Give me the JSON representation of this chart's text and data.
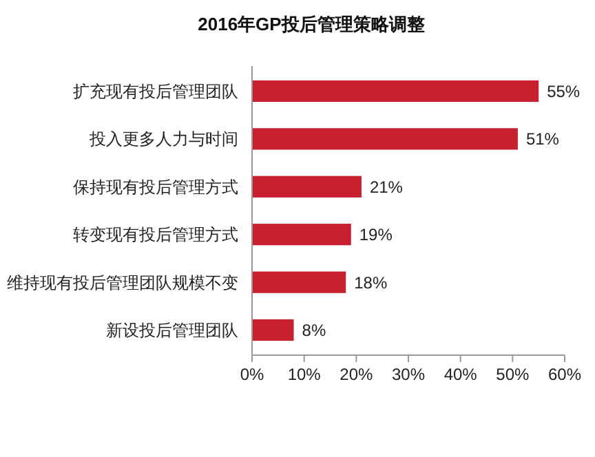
{
  "chart_data": {
    "type": "bar",
    "orientation": "horizontal",
    "title": "2016年GP投后管理策略调整",
    "categories": [
      "扩充现有投后管理团队",
      "投入更多人力与时间",
      "保持现有投后管理方式",
      "转变现有投后管理方式",
      "维持现有投后管理团队规模不变",
      "新设投后管理团队"
    ],
    "values": [
      55,
      51,
      21,
      19,
      18,
      8
    ],
    "value_labels": [
      "55%",
      "51%",
      "21%",
      "19%",
      "18%",
      "8%"
    ],
    "color": "#c8202f",
    "xlim": [
      0,
      60
    ],
    "xticks": [
      {
        "value": 0,
        "label": "0%"
      },
      {
        "value": 10,
        "label": "10%"
      },
      {
        "value": 20,
        "label": "20%"
      },
      {
        "value": 30,
        "label": "30%"
      },
      {
        "value": 40,
        "label": "40%"
      },
      {
        "value": 50,
        "label": "50%"
      },
      {
        "value": 60,
        "label": "60%"
      }
    ],
    "grid": false
  }
}
